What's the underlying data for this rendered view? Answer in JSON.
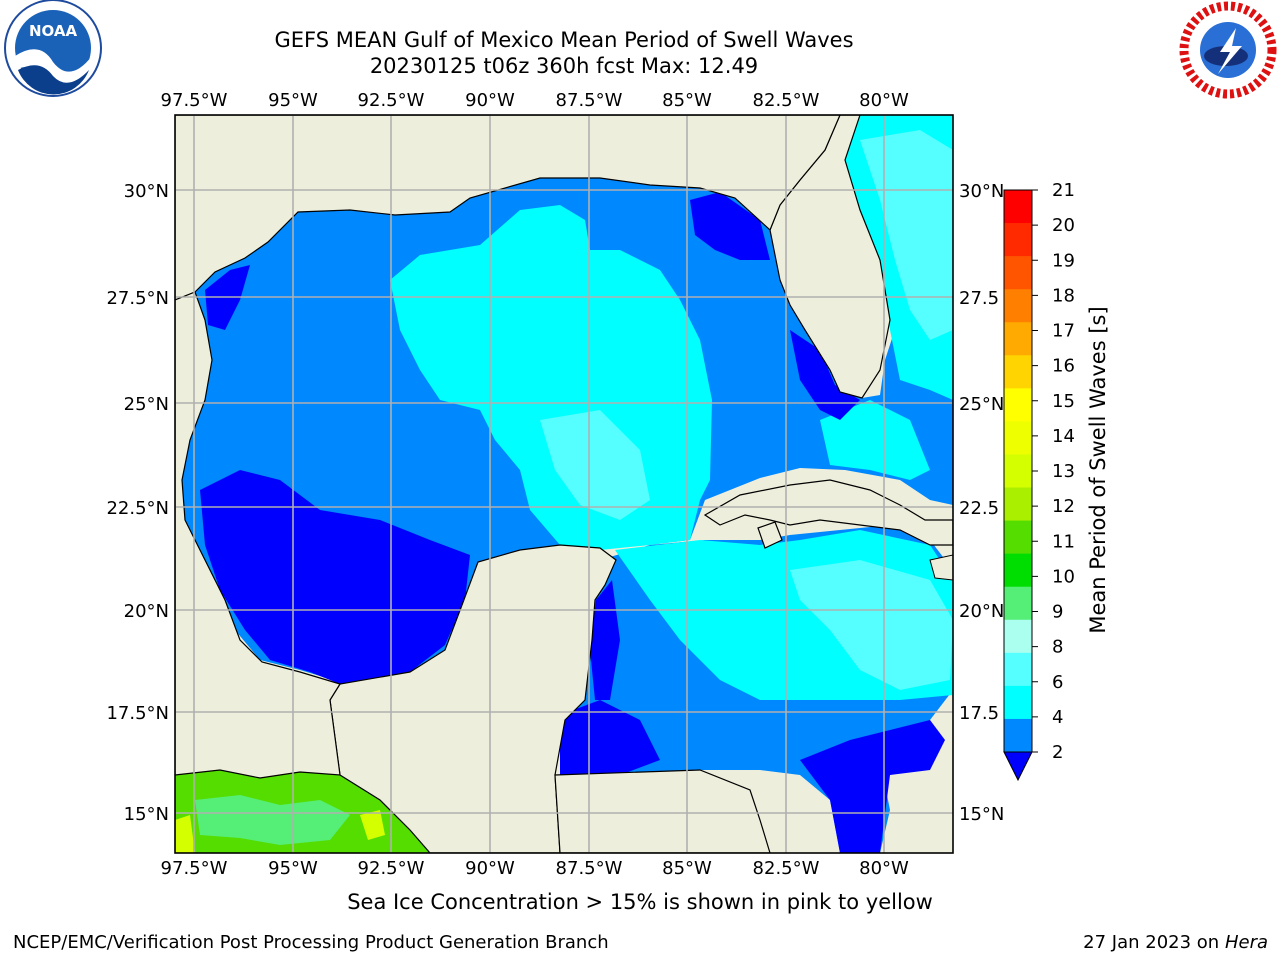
{
  "header": {
    "title_line1": "GEFS MEAN Gulf of Mexico Mean Period of Swell Waves",
    "title_line2": "20230125 t06z 360h fcst   Max: 12.49"
  },
  "logos": {
    "left": "noaa-logo",
    "left_text": "NOAA",
    "right": "national-weather-service-logo"
  },
  "map": {
    "lon_labels": [
      "97.5°W",
      "95°W",
      "92.5°W",
      "90°W",
      "87.5°W",
      "85°W",
      "82.5°W",
      "80°W"
    ],
    "lat_labels_left": [
      "30°N",
      "27.5°N",
      "25°N",
      "22.5°N",
      "20°N",
      "17.5°N",
      "15°N"
    ],
    "lat_labels_right": [
      "30°N",
      "27.5",
      "25°N",
      "22.5",
      "20°N",
      "17.5",
      "15°N"
    ],
    "land_color": "#eeeedc",
    "grid_color": "#b0b0b0"
  },
  "colorbar": {
    "label": "Mean Period of Swell Waves [s]",
    "ticks": [
      "21",
      "20",
      "19",
      "18",
      "17",
      "16",
      "15",
      "14",
      "13",
      "12",
      "11",
      "10",
      "9",
      "8",
      "6",
      "4",
      "2"
    ],
    "colors": [
      "#ff0000",
      "#ff2a00",
      "#ff5500",
      "#ff7f00",
      "#ffaa00",
      "#ffd400",
      "#ffff00",
      "#eeff00",
      "#d4ff00",
      "#aaee00",
      "#55dd00",
      "#00dd00",
      "#55ee77",
      "#aaffee",
      "#55ffff",
      "#00ffff",
      "#0088ff",
      "#0000ff"
    ]
  },
  "footer": {
    "note": "Sea Ice Concentration > 15% is shown in pink to yellow",
    "credit": "NCEP/EMC/Verification Post Processing Product Generation Branch",
    "date": "27 Jan 2023 on ",
    "host": "Hera"
  }
}
